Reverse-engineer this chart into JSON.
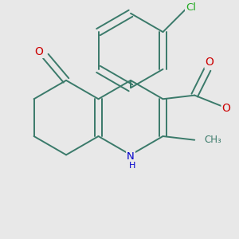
{
  "background_color": "#e8e8e8",
  "bond_color": "#3a7a6a",
  "bond_width": 1.4,
  "atom_colors": {
    "O": "#cc0000",
    "N": "#0000cc",
    "Cl": "#22aa22",
    "C": "#3a7a6a"
  },
  "font_size": 9.5,
  "xlim": [
    -2.8,
    3.2
  ],
  "ylim": [
    -3.2,
    3.0
  ]
}
